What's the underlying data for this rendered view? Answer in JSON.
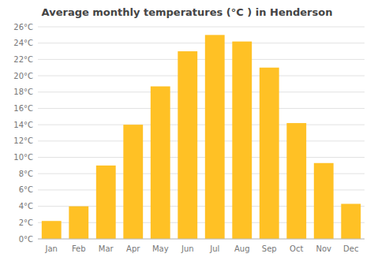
{
  "chart_data": {
    "type": "bar",
    "title": "Average monthly temperatures (°C ) in Henderson",
    "categories": [
      "Jan",
      "Feb",
      "Mar",
      "Apr",
      "May",
      "Jun",
      "Jul",
      "Aug",
      "Sep",
      "Oct",
      "Nov",
      "Dec"
    ],
    "values": [
      2.2,
      4.0,
      9.0,
      14.0,
      18.7,
      23.0,
      25.0,
      24.2,
      21.0,
      14.2,
      9.3,
      4.3
    ],
    "color": "#FFC125",
    "ylim": [
      0,
      26
    ],
    "yticks": [
      {
        "value": 0,
        "label": "0°C"
      },
      {
        "value": 2,
        "label": "2°C"
      },
      {
        "value": 4,
        "label": "4°C"
      },
      {
        "value": 6,
        "label": "6°C"
      },
      {
        "value": 8,
        "label": "8°C"
      },
      {
        "value": 10,
        "label": "10°C"
      },
      {
        "value": 12,
        "label": "12°C"
      },
      {
        "value": 14,
        "label": "14°C"
      },
      {
        "value": 16,
        "label": "16°C"
      },
      {
        "value": 18,
        "label": "18°C"
      },
      {
        "value": 20,
        "label": "20°C"
      },
      {
        "value": 22,
        "label": "22°C"
      },
      {
        "value": 24,
        "label": "24°C"
      },
      {
        "value": 26,
        "label": "26°C"
      }
    ],
    "grid": true
  }
}
